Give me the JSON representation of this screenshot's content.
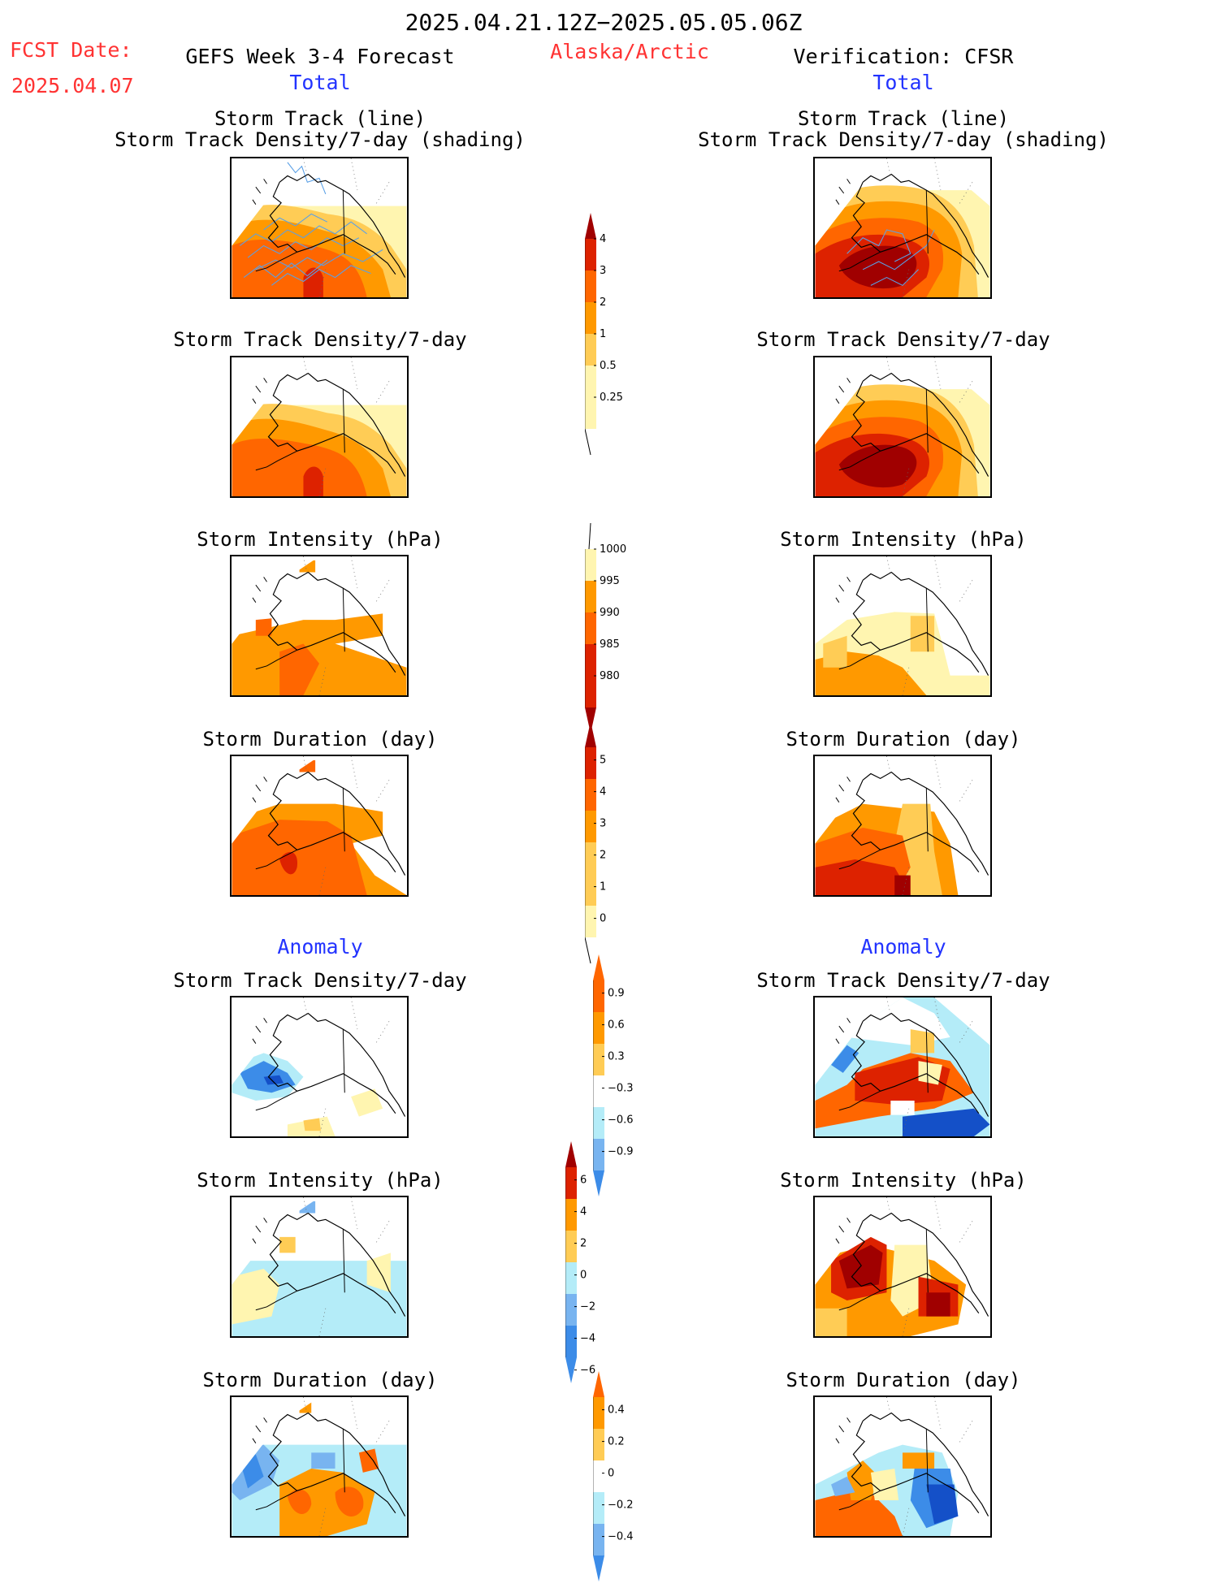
{
  "header": {
    "period": "2025.04.21.12Z−2025.05.05.06Z",
    "fcst_date_label": "FCST Date:",
    "fcst_date_value": "2025.04.07",
    "model_title": "GEFS Week 3-4 Forecast",
    "region": "Alaska/Arctic",
    "verification": "Verification: CFSR",
    "left_total": "Total",
    "right_total": "Total",
    "left_anomaly": "Anomaly",
    "right_anomaly": "Anomaly"
  },
  "panels": {
    "track_line_title": "Storm Track (line)",
    "track_shading_title": "Storm Track Density/7-day (shading)",
    "density_title": "Storm Track Density/7-day",
    "intensity_title": "Storm Intensity (hPa)",
    "duration_title": "Storm Duration (day)"
  },
  "colors": {
    "pale_yellow": "#fff5b0",
    "light_orange": "#ffcc55",
    "orange": "#ff9900",
    "dark_orange": "#ff6600",
    "red": "#dd2200",
    "dark_red": "#a00000",
    "light_blue": "#b4ecf8",
    "mid_blue": "#78b4f0",
    "blue": "#3c8ce8",
    "dark_blue": "#1450c8",
    "track_line": "#5aa0e6"
  },
  "chart_data": [
    {
      "type": "heatmap",
      "title": "Storm Track Density/7-day (shading)",
      "legend_labels": [
        "0.25",
        "0.5",
        "1",
        "2",
        "3",
        "4"
      ]
    },
    {
      "type": "heatmap",
      "title": "Storm Intensity (hPa)",
      "legend_labels": [
        "1000",
        "995",
        "990",
        "985",
        "980"
      ]
    },
    {
      "type": "heatmap",
      "title": "Storm Duration (day)",
      "legend_labels": [
        "5",
        "4",
        "3",
        "2",
        "1",
        "0"
      ]
    },
    {
      "type": "heatmap",
      "title": "Storm Track Density/7-day anomaly",
      "legend_labels": [
        "0.9",
        "0.6",
        "0.3",
        "−0.3",
        "−0.6",
        "−0.9"
      ]
    },
    {
      "type": "heatmap",
      "title": "Storm Intensity (hPa) anomaly",
      "legend_labels": [
        "6",
        "4",
        "2",
        "0",
        "−2",
        "−4",
        "−6"
      ]
    },
    {
      "type": "heatmap",
      "title": "Storm Duration (day) anomaly",
      "legend_labels": [
        "0.4",
        "0.2",
        "0",
        "−0.2",
        "−0.4"
      ]
    }
  ]
}
